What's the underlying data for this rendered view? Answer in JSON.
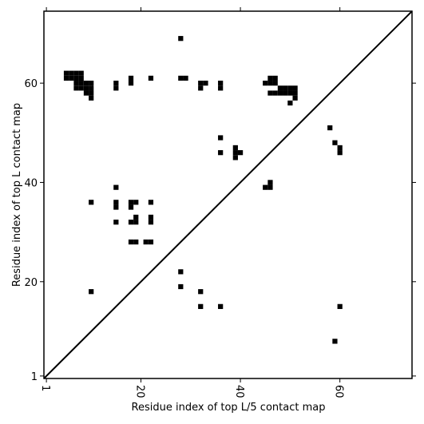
{
  "chart_data": {
    "type": "contact-map",
    "xlabel": "Residue index of top L/5 contact map",
    "ylabel": "Residue index of top L contact map",
    "x": [
      5,
      6,
      7,
      8,
      5,
      6,
      7,
      8,
      18,
      22,
      28,
      29,
      46,
      47,
      7,
      8,
      9,
      10,
      15,
      18,
      32,
      33,
      36,
      45,
      46,
      47,
      7,
      8,
      9,
      10,
      15,
      32,
      36,
      48,
      49,
      50,
      51,
      9,
      10,
      46,
      47,
      48,
      49,
      50,
      51,
      10,
      51,
      50,
      28,
      58,
      36,
      59,
      39,
      60,
      36,
      39,
      40,
      60,
      39,
      46,
      15,
      45,
      46,
      10,
      15,
      18,
      19,
      22,
      15,
      18,
      19,
      22,
      15,
      18,
      19,
      22,
      18,
      19,
      21,
      22,
      28,
      28,
      10,
      32,
      32,
      36,
      60,
      59
    ],
    "values": [
      62,
      62,
      62,
      62,
      61,
      61,
      61,
      61,
      61,
      61,
      61,
      61,
      61,
      61,
      60,
      60,
      60,
      60,
      60,
      60,
      60,
      60,
      60,
      60,
      60,
      60,
      59,
      59,
      59,
      59,
      59,
      59,
      59,
      59,
      59,
      59,
      59,
      58,
      58,
      58,
      58,
      58,
      58,
      58,
      58,
      57,
      57,
      56,
      69,
      51,
      49,
      48,
      47,
      47,
      46,
      46,
      46,
      46,
      45,
      40,
      39,
      39,
      39,
      36,
      36,
      36,
      36,
      36,
      35,
      35,
      33,
      33,
      32,
      32,
      32,
      32,
      28,
      28,
      28,
      28,
      22,
      19,
      18,
      18,
      15,
      15,
      15,
      8
    ],
    "color": "#000000",
    "xlim": [
      0.5,
      74.5
    ],
    "ylim": [
      0.5,
      74.5
    ],
    "xticks": [
      1,
      20,
      40,
      60
    ],
    "yticks": [
      1,
      20,
      40,
      60
    ]
  }
}
